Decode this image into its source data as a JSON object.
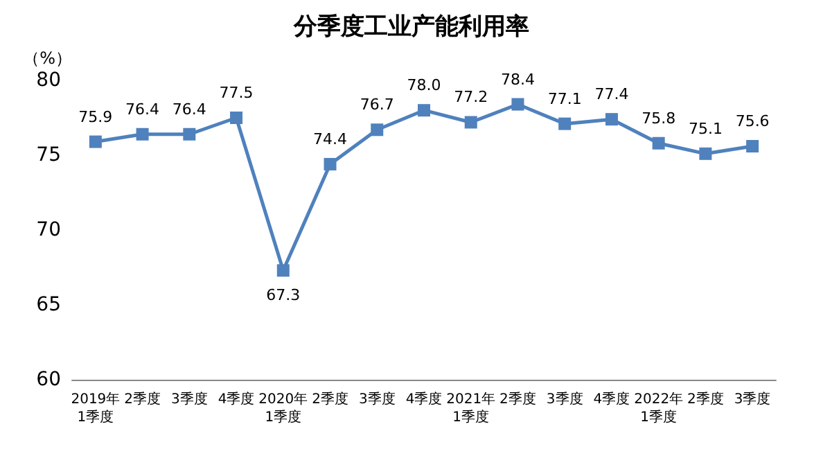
{
  "chart_data": {
    "type": "line",
    "title": "分季度工业产能利用率",
    "ylabel": "（%）",
    "categories": [
      "2019年\n1季度",
      "2季度",
      "3季度",
      "4季度",
      "2020年\n1季度",
      "2季度",
      "3季度",
      "4季度",
      "2021年\n1季度",
      "2季度",
      "3季度",
      "4季度",
      "2022年\n1季度",
      "2季度",
      "3季度"
    ],
    "series": [
      {
        "color": "#4f81bd",
        "values": [
          75.9,
          76.4,
          76.4,
          77.5,
          67.3,
          74.4,
          76.7,
          78.0,
          77.2,
          78.4,
          77.1,
          77.4,
          75.8,
          75.1,
          75.6
        ],
        "value_labels": [
          "75.9",
          "76.4",
          "76.4",
          "77.5",
          "67.3",
          "74.4",
          "76.7",
          "78.0",
          "77.2",
          "78.4",
          "77.1",
          "77.4",
          "75.8",
          "75.1",
          "75.6"
        ]
      }
    ],
    "ylim": [
      60,
      80
    ],
    "yticks": [
      60,
      65,
      70,
      75,
      80
    ],
    "grid": false,
    "marker": "square",
    "line_style": "solid"
  }
}
